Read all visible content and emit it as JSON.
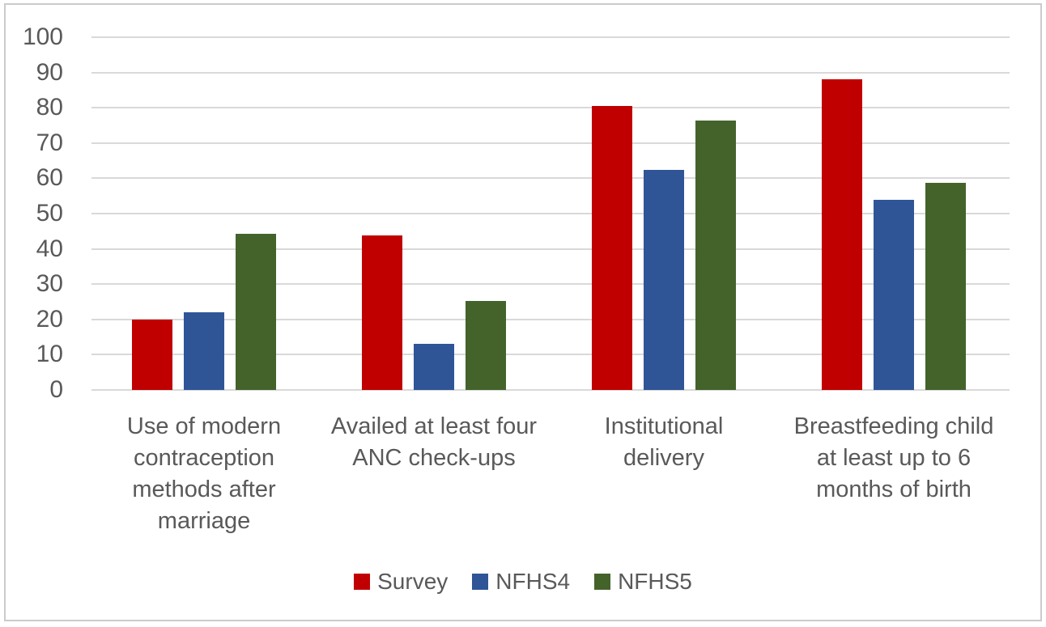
{
  "window": {
    "background": "#FFFFFF",
    "border_color": "#CBCBCB"
  },
  "chart_data": {
    "type": "bar",
    "title": "",
    "xlabel": "",
    "ylabel": "",
    "categories": [
      "Use of modern contraception methods after marriage",
      "Availed at least four ANC check-ups",
      "Institutional delivery",
      "Breastfeeding child at least up to 6 months of birth"
    ],
    "categories_wrapped": [
      [
        "Use of modern",
        "contraception",
        "methods after",
        "marriage"
      ],
      [
        "Availed at least four",
        "ANC check-ups"
      ],
      [
        "Institutional",
        "delivery"
      ],
      [
        "Breastfeeding child",
        "at least up to 6",
        "months of birth"
      ]
    ],
    "series": [
      {
        "name": "Survey",
        "color": "#C00000",
        "values": [
          20,
          43.7,
          80.5,
          88
        ]
      },
      {
        "name": "NFHS4",
        "color": "#2F5597",
        "values": [
          22,
          13,
          62.5,
          54
        ]
      },
      {
        "name": "NFHS5",
        "color": "#44632B",
        "values": [
          44.2,
          25.2,
          76.3,
          58.8
        ]
      }
    ],
    "ylim": [
      0,
      100
    ],
    "yticks": [
      0,
      10,
      20,
      30,
      40,
      50,
      60,
      70,
      80,
      90,
      100
    ],
    "grid": true,
    "gridline_color": "#D9D9D9",
    "axis_text_color": "#595959",
    "legend_position": "bottom"
  }
}
